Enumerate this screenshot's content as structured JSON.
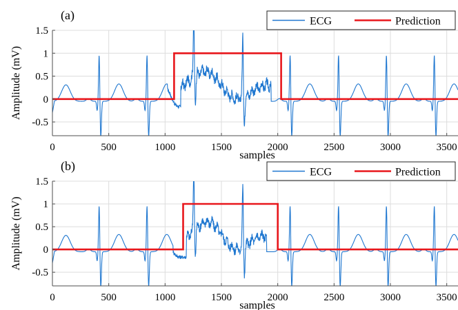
{
  "colors": {
    "ecg": "#1f77d0",
    "prediction": "#e8161b",
    "grid": "#dcdcdc",
    "axis": "#4d4d4d"
  },
  "chart_data": [
    {
      "type": "line",
      "panel_label": "(a)",
      "xlabel": "samples",
      "ylabel": "Amplitude (mV)",
      "xlim": [
        0,
        3600
      ],
      "ylim": [
        -0.8,
        1.5
      ],
      "xticks": [
        0,
        500,
        1000,
        1500,
        2000,
        2500,
        3000,
        3500
      ],
      "xtick_labels": [
        "0",
        "500",
        "1000",
        "1500",
        "2000",
        "2500",
        "3000",
        "3500"
      ],
      "yticks": [
        -0.5,
        0,
        0.5,
        1,
        1.5
      ],
      "ytick_labels": [
        "-0.5",
        "0",
        "0.5",
        "1",
        "1.5"
      ],
      "grid": true,
      "legend": "top-right",
      "series": [
        {
          "name": "ECG",
          "r_peaks": [
            415,
            840,
            1255,
            1690,
            2110,
            2540,
            2965,
            3390
          ],
          "af_segment": [
            1080,
            2030
          ]
        },
        {
          "name": "Prediction",
          "x": [
            0,
            1080,
            1080,
            2030,
            2030,
            3600
          ],
          "y": [
            0,
            0,
            1,
            1,
            0,
            0
          ]
        }
      ]
    },
    {
      "type": "line",
      "panel_label": "(b)",
      "xlabel": "samples",
      "ylabel": "Amplitude (mV)",
      "xlim": [
        0,
        3600
      ],
      "ylim": [
        -0.8,
        1.5
      ],
      "xticks": [
        0,
        500,
        1000,
        1500,
        2000,
        2500,
        3000,
        3500
      ],
      "xtick_labels": [
        "0",
        "500",
        "1000",
        "1500",
        "2000",
        "2500",
        "3000",
        "3500"
      ],
      "yticks": [
        -0.5,
        0,
        0.5,
        1,
        1.5
      ],
      "ytick_labels": [
        "-0.5",
        "0",
        "0.5",
        "1",
        "1.5"
      ],
      "grid": true,
      "legend": "top-right",
      "series": [
        {
          "name": "ECG",
          "r_peaks": [
            415,
            840,
            1255,
            1690,
            2110,
            2540,
            2965,
            3390
          ],
          "af_segment": [
            1130,
            1990
          ]
        },
        {
          "name": "Prediction",
          "x": [
            0,
            1160,
            1160,
            2000,
            2000,
            3600
          ],
          "y": [
            0,
            0,
            1,
            1,
            0,
            0
          ]
        }
      ]
    }
  ]
}
